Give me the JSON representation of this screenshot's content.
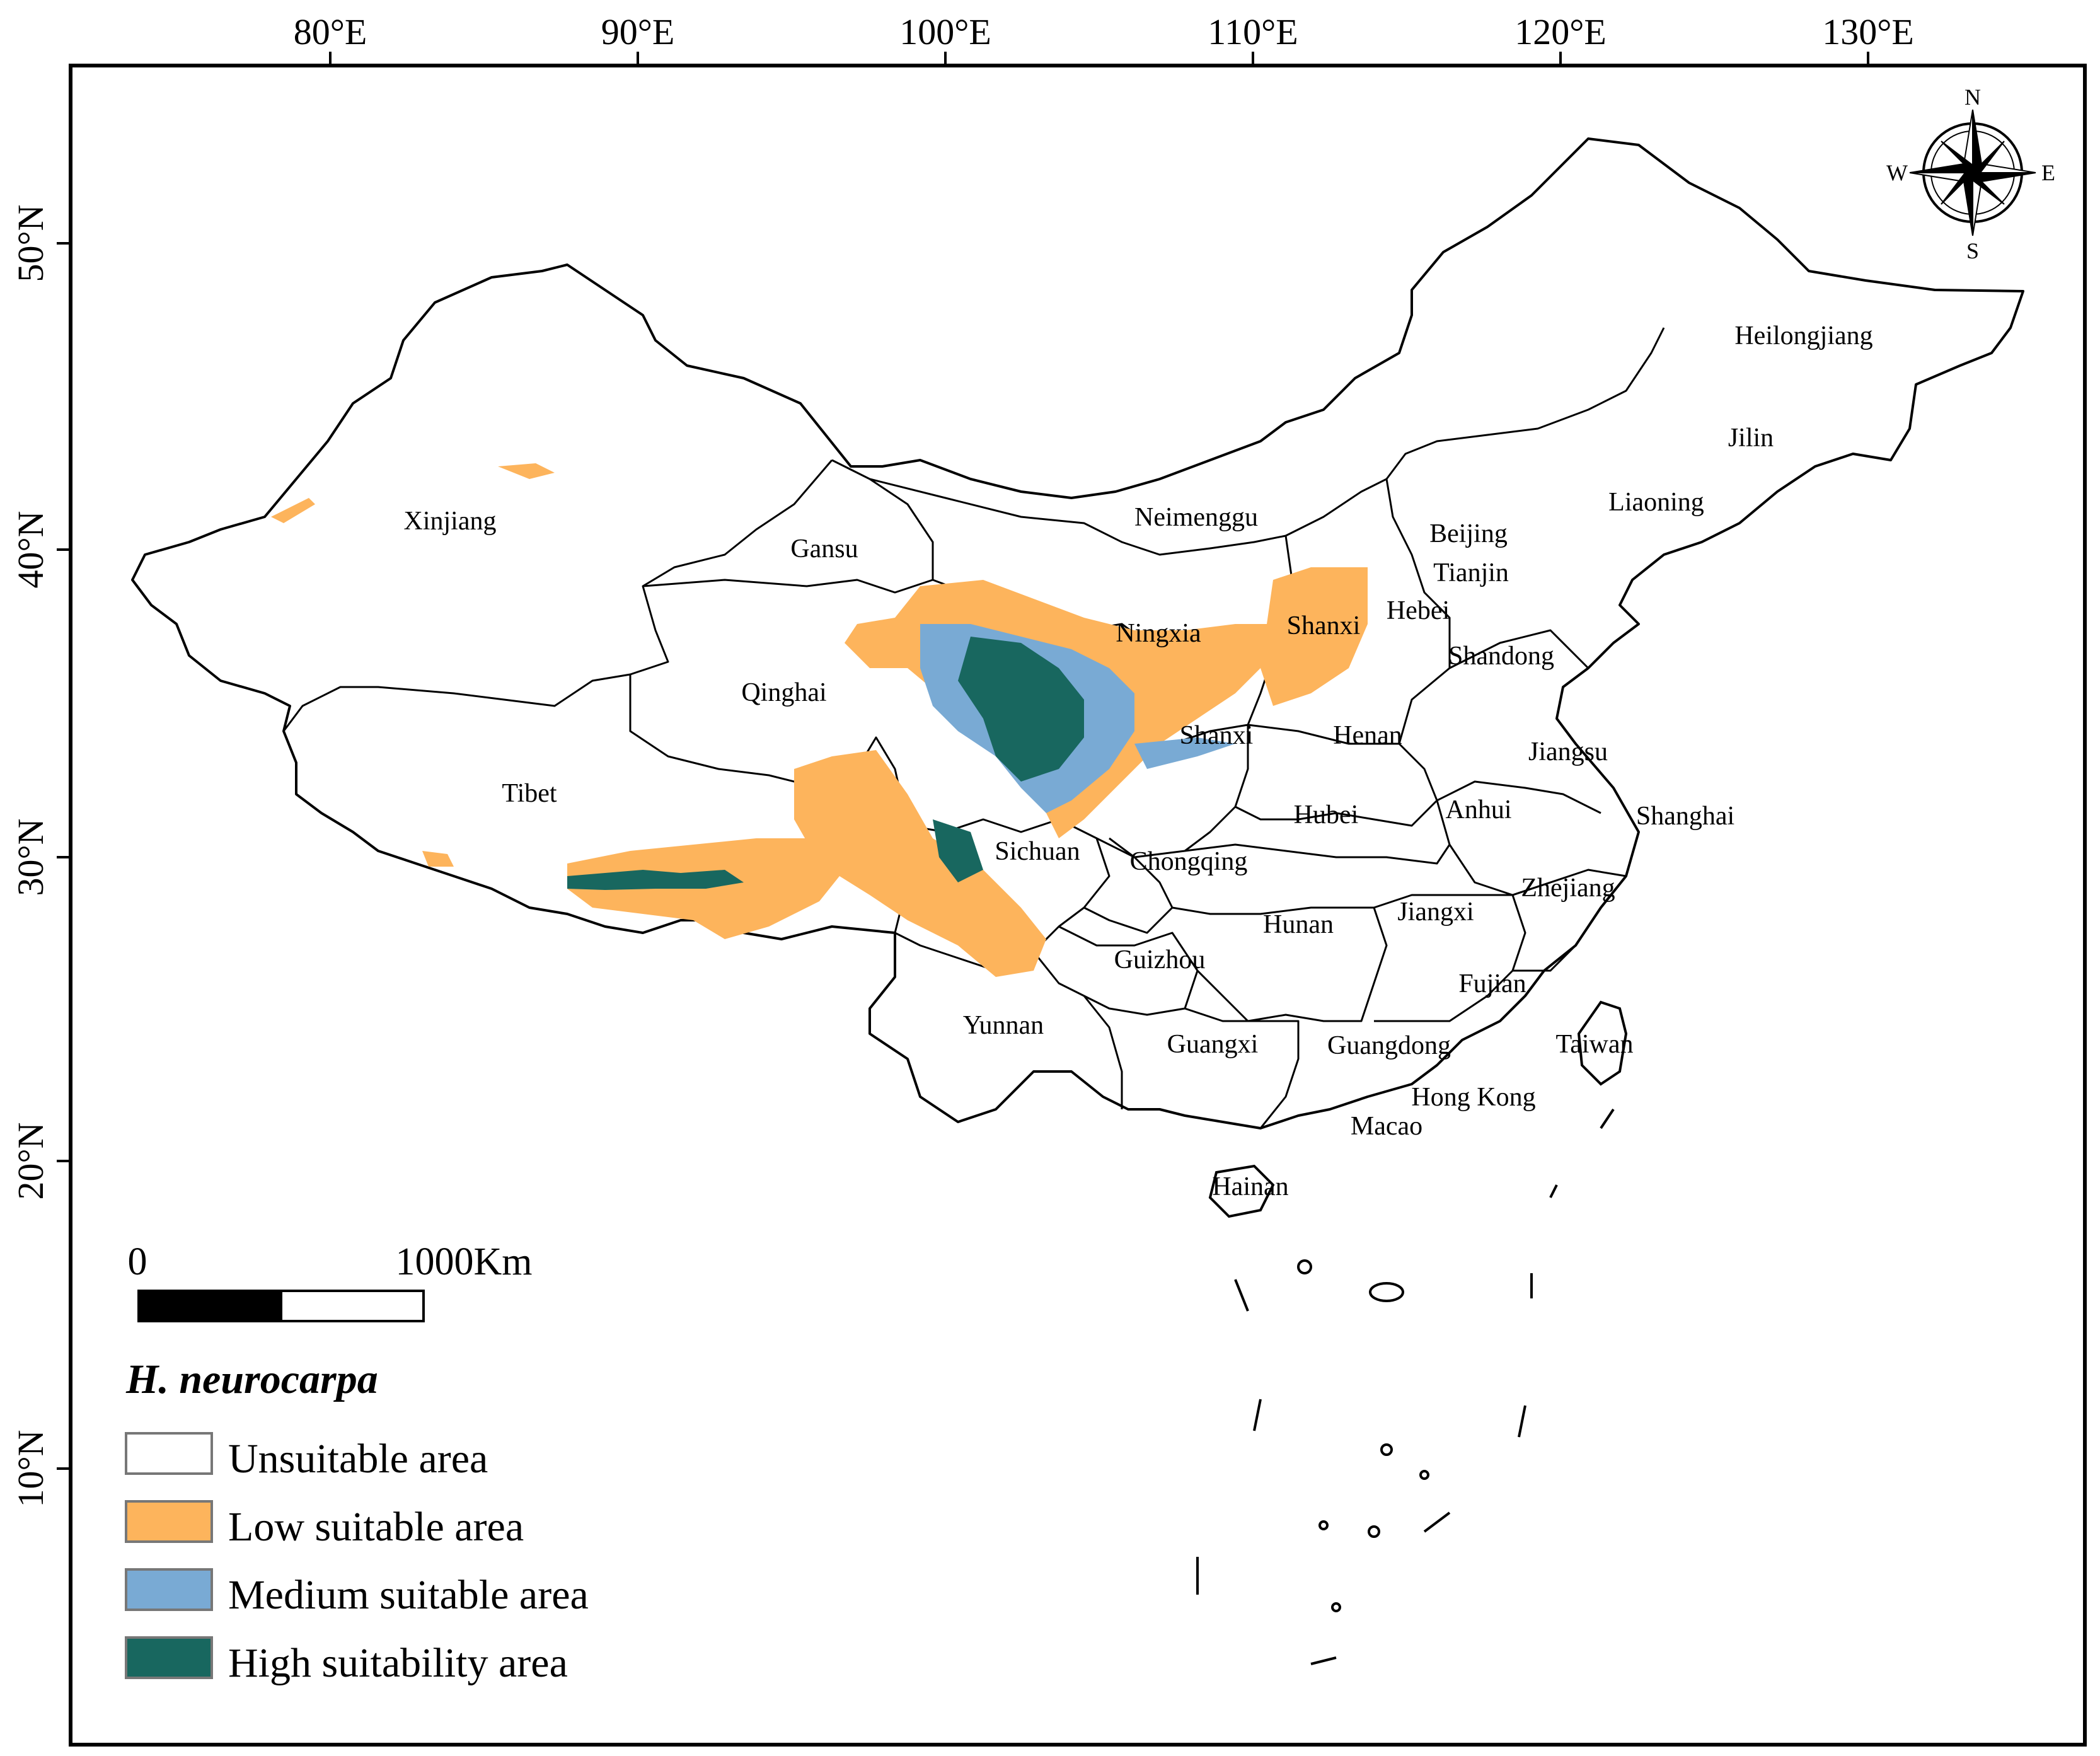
{
  "map": {
    "longitude_ticks": [
      "80°E",
      "90°E",
      "100°E",
      "110°E",
      "120°E",
      "130°E"
    ],
    "latitude_ticks": [
      "50°N",
      "40°N",
      "30°N",
      "20°N",
      "10°N"
    ],
    "provinces": [
      "Heilongjiang",
      "Jilin",
      "Liaoning",
      "Xinjiang",
      "Neimenggu",
      "Beijing",
      "Tianjin",
      "Gansu",
      "Hebei",
      "Ningxia",
      "Shanxi",
      "Shandong",
      "Qinghai",
      "Shanxi",
      "Henan",
      "Jiangsu",
      "Tibet",
      "Hubei",
      "Anhui",
      "Shanghai",
      "Sichuan",
      "Chongqing",
      "Zhejiang",
      "Hunan",
      "Jiangxi",
      "Guizhou",
      "Fujian",
      "Yunnan",
      "Taiwan",
      "Guangxi",
      "Guangdong",
      "Hong Kong",
      "Macao",
      "Hainan"
    ]
  },
  "compass": {
    "n": "N",
    "s": "S",
    "e": "E",
    "w": "W"
  },
  "scale_bar": {
    "start_label": "0",
    "end_label": "1000Km"
  },
  "legend": {
    "title": "H. neurocarpa",
    "items": [
      {
        "label": "Unsuitable area",
        "color": "#ffffff"
      },
      {
        "label": "Low suitable area",
        "color": "#fdb45c"
      },
      {
        "label": "Medium suitable area",
        "color": "#79aad4"
      },
      {
        "label": "High suitability area",
        "color": "#18675f"
      }
    ]
  }
}
